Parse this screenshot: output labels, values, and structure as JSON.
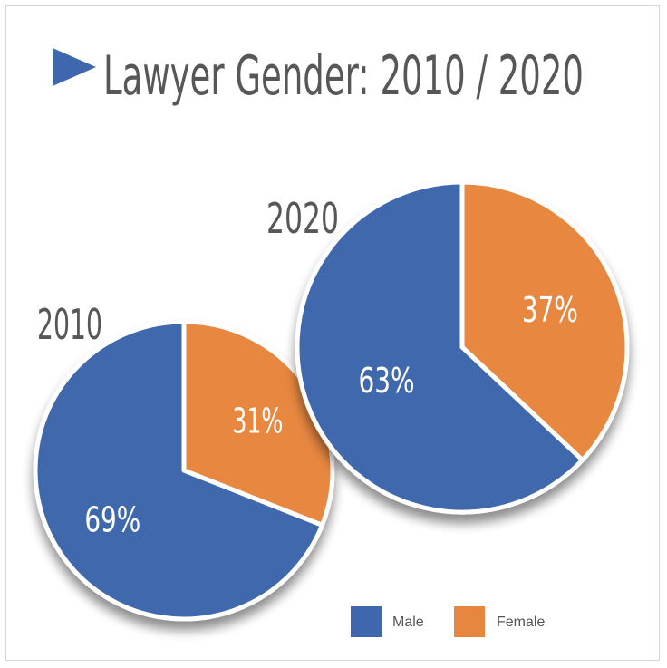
{
  "chart_data": {
    "type": "pie",
    "title": "Lawyer Gender: 2010 / 2020",
    "legend_position": "bottom-right",
    "legend": [
      {
        "name": "Male",
        "color": "#3f67ad"
      },
      {
        "name": "Female",
        "color": "#e7873f"
      }
    ],
    "charts": [
      {
        "label": "2010",
        "slices": [
          {
            "name": "Male",
            "value": 69,
            "display": "69%",
            "color": "#3f67ad"
          },
          {
            "name": "Female",
            "value": 31,
            "display": "31%",
            "color": "#e7873f"
          }
        ]
      },
      {
        "label": "2020",
        "slices": [
          {
            "name": "Male",
            "value": 63,
            "display": "63%",
            "color": "#3f67ad"
          },
          {
            "name": "Female",
            "value": 37,
            "display": "37%",
            "color": "#e7873f"
          }
        ]
      }
    ]
  }
}
